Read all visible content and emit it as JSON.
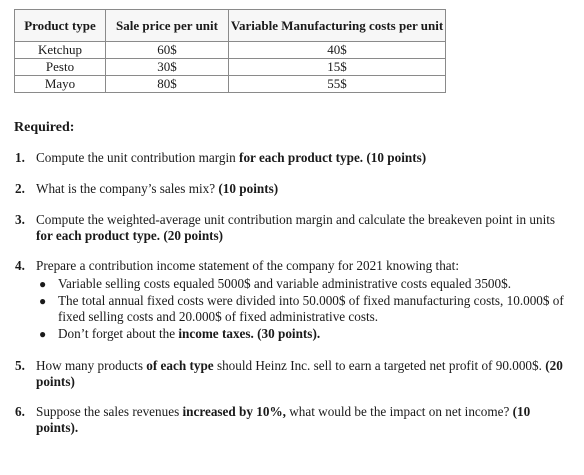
{
  "table": {
    "headers": [
      "Product type",
      "Sale price per unit",
      "Variable Manufacturing costs per unit"
    ],
    "rows": [
      [
        "Ketchup",
        "60$",
        "40$"
      ],
      [
        "Pesto",
        "30$",
        "15$"
      ],
      [
        "Mayo",
        "80$",
        "55$"
      ]
    ]
  },
  "required_heading": "Required:",
  "questions": {
    "q1": {
      "num": "1.",
      "t1": "Compute the unit contribution margin ",
      "b1": "for each product type. (10 points)"
    },
    "q2": {
      "num": "2.",
      "t1": "What is the company’s sales mix? ",
      "b1": "(10 points)"
    },
    "q3": {
      "num": "3.",
      "t1": "Compute the weighted-average unit contribution margin and calculate the breakeven point in units ",
      "b1": "for each product type. (20 points)"
    },
    "q4": {
      "num": "4.",
      "t1": "Prepare a contribution income statement of the company for 2021 knowing that:",
      "bullets": {
        "b1": "Variable selling costs equaled 5000$ and variable administrative costs equaled 3500$.",
        "b2": "The total annual fixed costs were divided into 50.000$ of fixed manufacturing costs, 10.000$ of fixed selling costs and 20.000$ of fixed administrative costs.",
        "b3_t": "Don’t forget about the ",
        "b3_b": "income taxes. (30 points)."
      }
    },
    "q5": {
      "num": "5.",
      "t1": "How many products ",
      "b1": "of each type",
      "t2": " should Heinz Inc. sell to earn a targeted net profit of 90.000$. ",
      "b2": "(20 points)"
    },
    "q6": {
      "num": "6.",
      "t1": "Suppose the sales revenues ",
      "b1": "increased by 10%,",
      "t2": " what would be the impact on net income? ",
      "b2": "(10 points)."
    }
  }
}
